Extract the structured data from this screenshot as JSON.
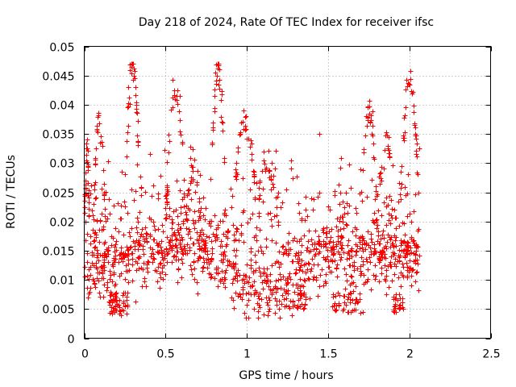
{
  "chart_data": {
    "type": "scatter",
    "title": "Day 218 of 2024, Rate Of TEC Index for receiver ifsc",
    "xlabel": "GPS time / hours",
    "ylabel": "ROTI / TECUs",
    "xlim": [
      0,
      2.5
    ],
    "ylim": [
      0,
      0.05
    ],
    "x_ticks": [
      0,
      0.5,
      1,
      1.5,
      2,
      2.5
    ],
    "x_tick_labels": [
      "0",
      "0.5",
      "1",
      "1.5",
      "2",
      "2.5"
    ],
    "y_ticks": [
      0,
      0.005,
      0.01,
      0.015,
      0.02,
      0.025,
      0.03,
      0.035,
      0.04,
      0.045,
      0.05
    ],
    "y_tick_labels": [
      "0",
      "0.005",
      "0.01",
      "0.015",
      "0.02",
      "0.025",
      "0.03",
      "0.035",
      "0.04",
      "0.045",
      "0.05"
    ],
    "grid": true,
    "marker": "+",
    "color": "#ff0000",
    "series": [
      {
        "name": "ROTI",
        "x": [],
        "y": []
      }
    ]
  }
}
